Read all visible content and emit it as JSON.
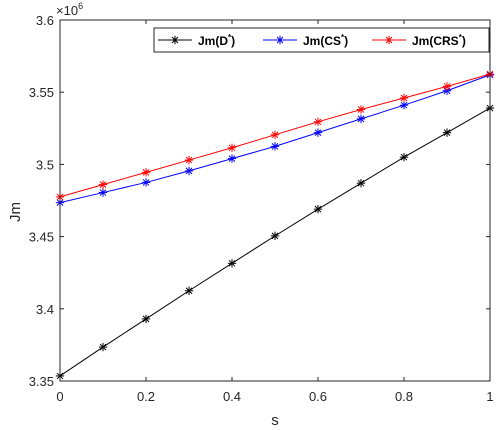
{
  "chart_data": {
    "type": "line",
    "xlabel": "s",
    "ylabel": "Jm",
    "x": [
      0,
      0.1,
      0.2,
      0.3,
      0.4,
      0.5,
      0.6,
      0.7,
      0.8,
      0.9,
      1
    ],
    "xlim": [
      0,
      1
    ],
    "ylim": [
      3.35,
      3.6
    ],
    "y_multiplier": {
      "base": "×10",
      "exponent": "6"
    },
    "x_ticks": [
      "0",
      "0.2",
      "0.4",
      "0.6",
      "0.8",
      "1"
    ],
    "y_ticks": [
      "3.35",
      "3.4",
      "3.45",
      "3.5",
      "3.55",
      "3.6"
    ],
    "grid": false,
    "legend_position": "top-right",
    "series": [
      {
        "name": "Jm(D*)",
        "legend_base": "Jm(D",
        "legend_sup": "*",
        "legend_close": ")",
        "color": "#000000",
        "marker": "asterisk",
        "values": [
          3.3535,
          3.3735,
          3.393,
          3.4125,
          3.4315,
          3.4505,
          3.469,
          3.487,
          3.505,
          3.522,
          3.539
        ]
      },
      {
        "name": "Jm(CS*)",
        "legend_base": "Jm(CS",
        "legend_sup": "*",
        "legend_close": ")",
        "color": "#0000ff",
        "marker": "asterisk",
        "values": [
          3.4735,
          3.4805,
          3.4875,
          3.4955,
          3.504,
          3.5125,
          3.522,
          3.5315,
          3.541,
          3.551,
          3.562
        ]
      },
      {
        "name": "Jm(CRS*)",
        "legend_base": "Jm(CRS",
        "legend_sup": "*",
        "legend_close": ")",
        "color": "#ff0000",
        "marker": "asterisk",
        "values": [
          3.4775,
          3.486,
          3.4945,
          3.503,
          3.5115,
          3.5205,
          3.5295,
          3.538,
          3.546,
          3.554,
          3.5625
        ]
      }
    ]
  }
}
